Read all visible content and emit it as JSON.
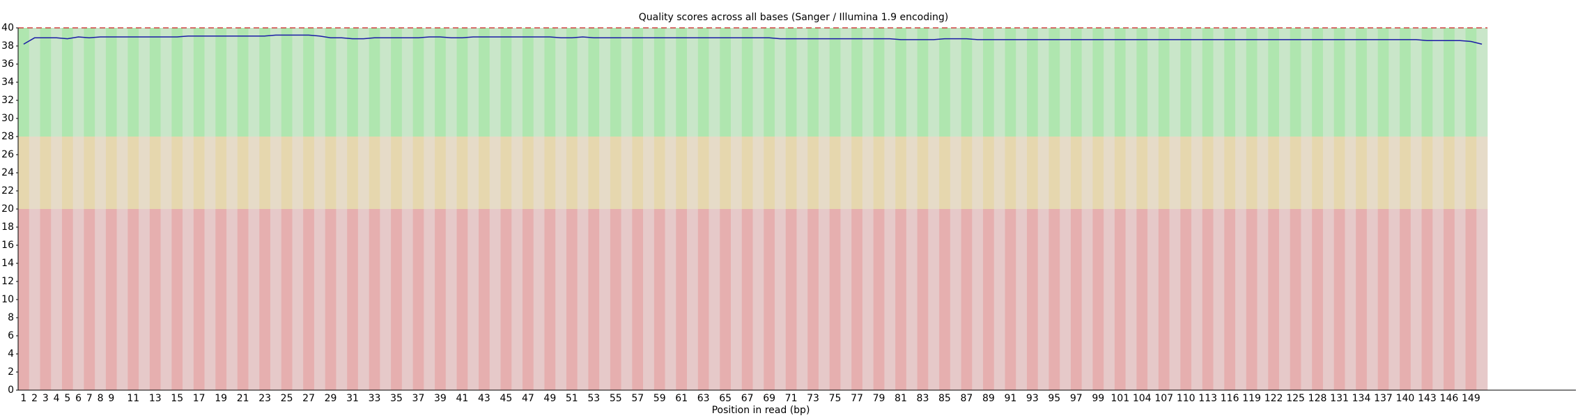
{
  "chart_data": {
    "type": "line",
    "title": "Quality scores across all bases (Sanger / Illumina 1.9 encoding)",
    "x_label": "Position in read (bp)",
    "categories": [
      1,
      2,
      3,
      4,
      5,
      6,
      7,
      8,
      9,
      null,
      11,
      null,
      13,
      null,
      15,
      null,
      17,
      null,
      19,
      null,
      21,
      null,
      23,
      null,
      25,
      null,
      27,
      null,
      29,
      null,
      31,
      null,
      33,
      null,
      35,
      null,
      37,
      null,
      39,
      null,
      41,
      null,
      43,
      null,
      45,
      null,
      47,
      null,
      49,
      null,
      51,
      null,
      53,
      null,
      55,
      null,
      57,
      null,
      59,
      null,
      61,
      null,
      63,
      null,
      65,
      null,
      67,
      null,
      69,
      null,
      71,
      null,
      73,
      null,
      75,
      null,
      77,
      null,
      79,
      null,
      81,
      null,
      83,
      null,
      85,
      null,
      87,
      null,
      89,
      null,
      91,
      null,
      93,
      null,
      95,
      null,
      97,
      null,
      99,
      null,
      101,
      null,
      104,
      null,
      107,
      null,
      110,
      null,
      113,
      null,
      116,
      null,
      119,
      null,
      122,
      null,
      125,
      null,
      128,
      null,
      131,
      null,
      134,
      null,
      137,
      null,
      140,
      null,
      143,
      null,
      146,
      null,
      149,
      null
    ],
    "series": [
      {
        "color": "#1a1aa6",
        "values": [
          38.2,
          38.9,
          38.9,
          38.9,
          38.8,
          39.0,
          38.9,
          39.0,
          39.0,
          39.0,
          39.0,
          39.0,
          39.0,
          39.0,
          39.0,
          39.1,
          39.1,
          39.1,
          39.1,
          39.1,
          39.1,
          39.1,
          39.1,
          39.2,
          39.2,
          39.2,
          39.2,
          39.1,
          38.9,
          38.9,
          38.8,
          38.8,
          38.9,
          38.9,
          38.9,
          38.9,
          38.9,
          39.0,
          39.0,
          38.9,
          38.9,
          39.0,
          39.0,
          39.0,
          39.0,
          39.0,
          39.0,
          39.0,
          39.0,
          38.9,
          38.9,
          39.0,
          38.9,
          38.9,
          38.9,
          38.9,
          38.9,
          38.9,
          38.9,
          38.9,
          38.9,
          38.9,
          38.9,
          38.9,
          38.9,
          38.9,
          38.9,
          38.9,
          38.9,
          38.8,
          38.8,
          38.8,
          38.8,
          38.8,
          38.8,
          38.8,
          38.8,
          38.8,
          38.8,
          38.8,
          38.7,
          38.7,
          38.7,
          38.7,
          38.8,
          38.8,
          38.8,
          38.7,
          38.7,
          38.7,
          38.7,
          38.7,
          38.7,
          38.7,
          38.7,
          38.7,
          38.7,
          38.7,
          38.7,
          38.7,
          38.7,
          38.7,
          38.7,
          38.7,
          38.7,
          38.7,
          38.7,
          38.7,
          38.7,
          38.7,
          38.7,
          38.7,
          38.7,
          38.7,
          38.7,
          38.7,
          38.7,
          38.7,
          38.7,
          38.7,
          38.7,
          38.7,
          38.7,
          38.7,
          38.7,
          38.7,
          38.7,
          38.7,
          38.6,
          38.6,
          38.6,
          38.6,
          38.5,
          38.2
        ]
      }
    ],
    "zones": [
      {
        "from": 0,
        "to": 20,
        "colors": [
          "#e6afaf",
          "#e6c9c9"
        ]
      },
      {
        "from": 20,
        "to": 28,
        "colors": [
          "#e6d7ae",
          "#e6dbc8"
        ]
      },
      {
        "from": 28,
        "to": 40,
        "colors": [
          "#afe6af",
          "#c9e6c9"
        ]
      }
    ],
    "ylim": [
      0,
      40
    ],
    "yticks": [
      0,
      2,
      4,
      6,
      8,
      10,
      12,
      14,
      16,
      18,
      20,
      22,
      24,
      26,
      28,
      30,
      32,
      34,
      36,
      38,
      40
    ]
  }
}
